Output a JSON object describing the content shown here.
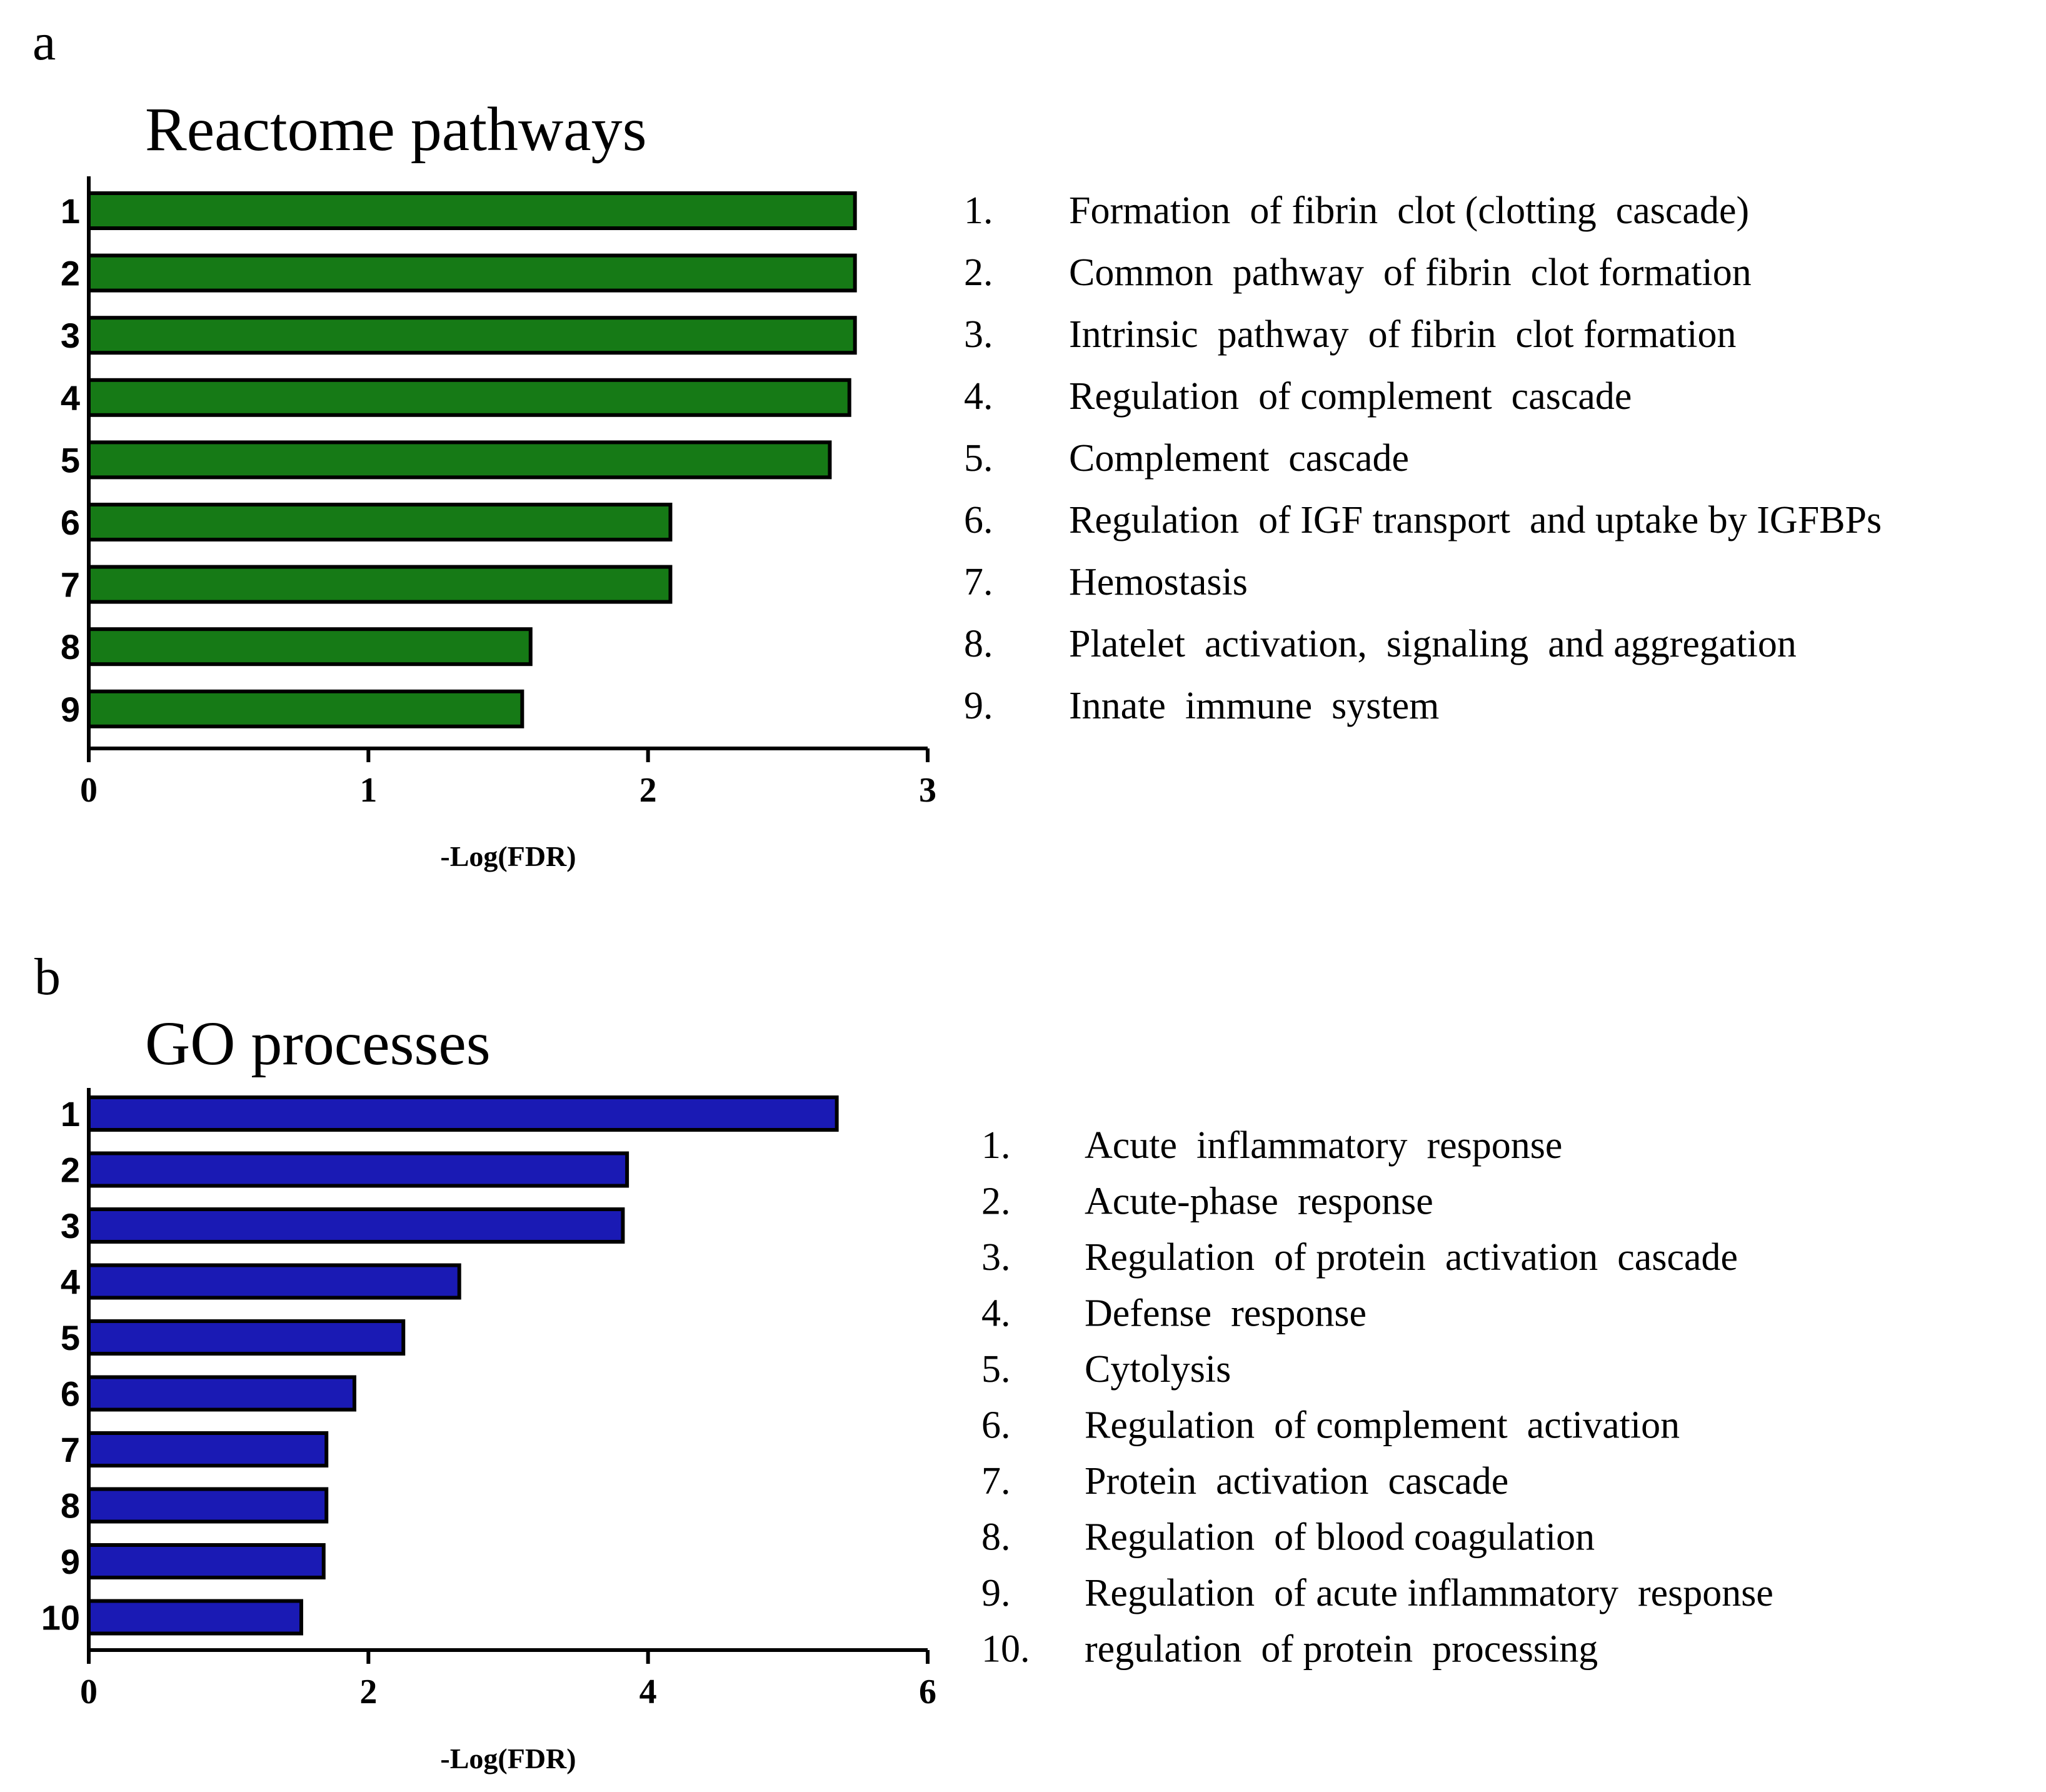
{
  "panels": [
    {
      "letter": "a",
      "legend_items": [
        {
          "num": "1.",
          "text": "Formation  of fibrin  clot (clotting  cascade)"
        },
        {
          "num": "2.",
          "text": "Common  pathway  of fibrin  clot formation"
        },
        {
          "num": "3.",
          "text": "Intrinsic  pathway  of fibrin  clot formation"
        },
        {
          "num": "4.",
          "text": "Regulation  of complement  cascade"
        },
        {
          "num": "5.",
          "text": "Complement  cascade"
        },
        {
          "num": "6.",
          "text": "Regulation  of IGF transport  and uptake by IGFBPs"
        },
        {
          "num": "7.",
          "text": "Hemostasis"
        },
        {
          "num": "8.",
          "text": "Platelet  activation,  signaling  and aggregation"
        },
        {
          "num": "9.",
          "text": "Innate  immune  system"
        }
      ]
    },
    {
      "letter": "b",
      "legend_items": [
        {
          "num": "1.",
          "text": "Acute  inflammatory  response"
        },
        {
          "num": "2.",
          "text": "Acute-phase  response"
        },
        {
          "num": "3.",
          "text": "Regulation  of protein  activation  cascade"
        },
        {
          "num": "4.",
          "text": "Defense  response"
        },
        {
          "num": "5.",
          "text": "Cytolysis"
        },
        {
          "num": "6.",
          "text": "Regulation  of complement  activation"
        },
        {
          "num": "7.",
          "text": "Protein  activation  cascade"
        },
        {
          "num": "8.",
          "text": "Regulation  of blood coagulation"
        },
        {
          "num": "9.",
          "text": "Regulation  of acute inflammatory  response"
        },
        {
          "num": "10.",
          "text": "regulation  of protein  processing"
        }
      ]
    }
  ],
  "chart_data": [
    {
      "type": "bar",
      "orientation": "horizontal",
      "title": "Reactome pathways",
      "categories": [
        "1",
        "2",
        "3",
        "4",
        "5",
        "6",
        "7",
        "8",
        "9"
      ],
      "values": [
        2.74,
        2.74,
        2.74,
        2.72,
        2.65,
        2.08,
        2.08,
        1.58,
        1.55
      ],
      "xlabel": "-Log(FDR)",
      "ylabel": "",
      "xlim": [
        0,
        3
      ],
      "xticks": [
        "0",
        "1",
        "2",
        "3"
      ],
      "color": "#167a16"
    },
    {
      "type": "bar",
      "orientation": "horizontal",
      "title": "GO processes",
      "categories": [
        "1",
        "2",
        "3",
        "4",
        "5",
        "6",
        "7",
        "8",
        "9",
        "10"
      ],
      "values": [
        5.35,
        3.85,
        3.82,
        2.65,
        2.25,
        1.9,
        1.7,
        1.7,
        1.68,
        1.52
      ],
      "xlabel": "-Log(FDR)",
      "ylabel": "",
      "xlim": [
        0,
        6
      ],
      "xticks": [
        "0",
        "2",
        "4",
        "6"
      ],
      "color": "#1a1ab4"
    }
  ]
}
